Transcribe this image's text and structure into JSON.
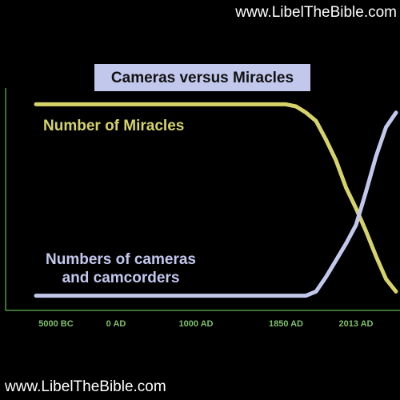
{
  "header": {
    "watermark_top": "www.LibelTheBible.com",
    "watermark_bottom": "www.LibelTheBible.com"
  },
  "chart_data": {
    "type": "line",
    "title": "Cameras versus Miracles",
    "categories": [
      null,
      null,
      "5000 BC",
      null,
      null,
      null,
      null,
      null,
      "0 AD",
      null,
      null,
      null,
      null,
      null,
      null,
      null,
      "1000 AD",
      null,
      null,
      null,
      null,
      null,
      null,
      null,
      null,
      "1850 AD",
      null,
      null,
      null,
      null,
      null,
      null,
      "2013 AD",
      null,
      null,
      null,
      null
    ],
    "ylim": [
      0,
      100
    ],
    "series": [
      {
        "name": "Number of Miracles",
        "color": "#d6d36a",
        "values": [
          96,
          96,
          96,
          96,
          96,
          96,
          96,
          96,
          96,
          96,
          96,
          96,
          96,
          96,
          96,
          96,
          96,
          96,
          96,
          96,
          96,
          96,
          96,
          96,
          96,
          96,
          95,
          92,
          88,
          79,
          69,
          56,
          46,
          35,
          23,
          12,
          6
        ]
      },
      {
        "name": "Numbers of cameras and camcorders",
        "color": "#c2c8ec",
        "values": [
          4,
          4,
          4,
          4,
          4,
          4,
          4,
          4,
          4,
          4,
          4,
          4,
          4,
          4,
          4,
          4,
          4,
          4,
          4,
          4,
          4,
          4,
          4,
          4,
          4,
          4,
          4,
          4,
          6,
          13,
          21,
          29,
          38,
          54,
          71,
          85,
          92
        ]
      }
    ]
  }
}
